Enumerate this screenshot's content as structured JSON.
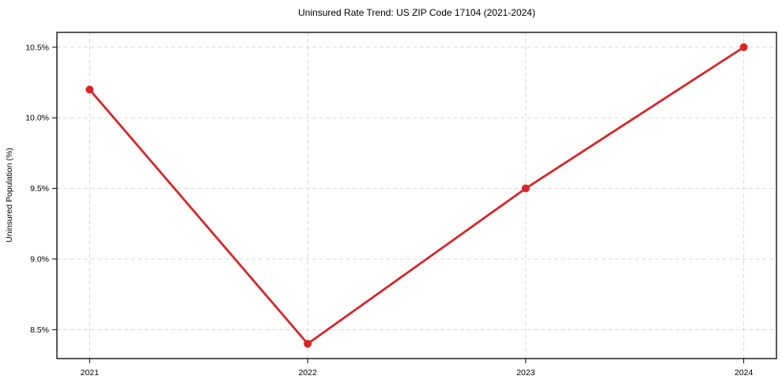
{
  "page": {
    "background_color": "#ffffff",
    "text_color": "#000000",
    "grid_color": "#d7d7d7",
    "accent_color": "#d62728"
  },
  "chart_data": {
    "type": "line",
    "title": "Uninsured Rate Trend: US ZIP Code 17104 (2021-2024)",
    "xlabel": "",
    "ylabel": "Uninsured Population (%)",
    "x": [
      2021,
      2022,
      2023,
      2024
    ],
    "x_tick_labels": [
      "2021",
      "2022",
      "2023",
      "2024"
    ],
    "y_tick_values": [
      8.5,
      9.0,
      9.5,
      10.0,
      10.5
    ],
    "y_tick_labels": [
      "8.5%",
      "9.0%",
      "9.5%",
      "10.0%",
      "10.5%"
    ],
    "xlim": [
      2020.85,
      2024.15
    ],
    "ylim": [
      8.295,
      10.605
    ],
    "grid": true,
    "grid_style": "dashed",
    "legend_position": "none",
    "marker": "circle",
    "series": [
      {
        "name": "Uninsured Rate",
        "values": [
          10.2,
          8.4,
          9.5,
          10.5
        ],
        "color": "#d62728",
        "line_width": 2.8,
        "marker_radius": 5
      }
    ]
  }
}
